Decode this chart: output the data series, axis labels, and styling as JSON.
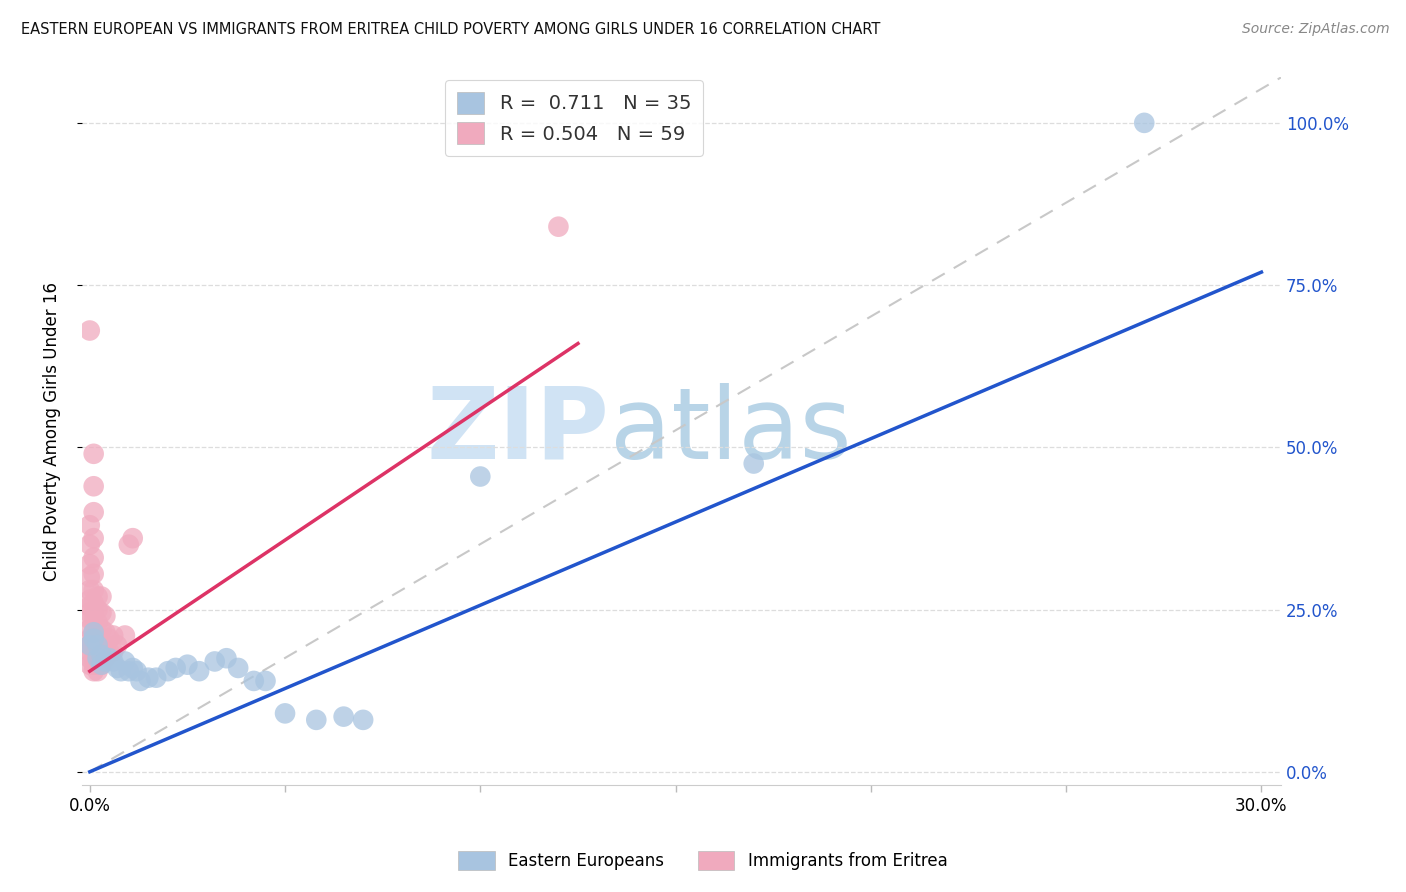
{
  "title": "EASTERN EUROPEAN VS IMMIGRANTS FROM ERITREA CHILD POVERTY AMONG GIRLS UNDER 16 CORRELATION CHART",
  "source": "Source: ZipAtlas.com",
  "ylabel": "Child Poverty Among Girls Under 16",
  "xlim": [
    -0.002,
    0.305
  ],
  "ylim": [
    -0.02,
    1.07
  ],
  "yticks": [
    0.0,
    0.25,
    0.5,
    0.75,
    1.0
  ],
  "xticks": [
    0.0,
    0.05,
    0.1,
    0.15,
    0.2,
    0.25,
    0.3
  ],
  "xtick_labels": [
    "0.0%",
    "",
    "",
    "",
    "",
    "",
    "30.0%"
  ],
  "ytick_labels_right": [
    "0.0%",
    "25.0%",
    "50.0%",
    "75.0%",
    "100.0%"
  ],
  "blue_R": "0.711",
  "blue_N": "35",
  "pink_R": "0.504",
  "pink_N": "59",
  "blue_scatter_color": "#A8C4E0",
  "pink_scatter_color": "#F0AABE",
  "blue_line_color": "#2255CC",
  "pink_line_color": "#DD3366",
  "grid_color": "#DDDDDD",
  "diag_color": "#C8C8C8",
  "watermark_zip_color": "#C0D8F0",
  "watermark_atlas_color": "#98C0E0",
  "legend_label_blue": "Eastern Europeans",
  "legend_label_pink": "Immigrants from Eritrea",
  "blue_line_x": [
    0.0,
    0.3
  ],
  "blue_line_y": [
    0.0,
    0.77
  ],
  "pink_line_x": [
    0.0,
    0.125
  ],
  "pink_line_y": [
    0.155,
    0.66
  ],
  "diag_line_x": [
    0.0,
    0.305
  ],
  "diag_line_y": [
    0.0,
    1.07
  ],
  "blue_points": [
    [
      0.0,
      0.195
    ],
    [
      0.001,
      0.215
    ],
    [
      0.001,
      0.205
    ],
    [
      0.002,
      0.195
    ],
    [
      0.002,
      0.175
    ],
    [
      0.003,
      0.18
    ],
    [
      0.003,
      0.165
    ],
    [
      0.004,
      0.17
    ],
    [
      0.005,
      0.175
    ],
    [
      0.006,
      0.17
    ],
    [
      0.007,
      0.16
    ],
    [
      0.008,
      0.155
    ],
    [
      0.009,
      0.17
    ],
    [
      0.01,
      0.155
    ],
    [
      0.011,
      0.16
    ],
    [
      0.012,
      0.155
    ],
    [
      0.013,
      0.14
    ],
    [
      0.015,
      0.145
    ],
    [
      0.017,
      0.145
    ],
    [
      0.02,
      0.155
    ],
    [
      0.022,
      0.16
    ],
    [
      0.025,
      0.165
    ],
    [
      0.028,
      0.155
    ],
    [
      0.032,
      0.17
    ],
    [
      0.035,
      0.175
    ],
    [
      0.038,
      0.16
    ],
    [
      0.042,
      0.14
    ],
    [
      0.045,
      0.14
    ],
    [
      0.05,
      0.09
    ],
    [
      0.058,
      0.08
    ],
    [
      0.065,
      0.085
    ],
    [
      0.07,
      0.08
    ],
    [
      0.1,
      0.455
    ],
    [
      0.17,
      0.475
    ],
    [
      0.27,
      1.0
    ]
  ],
  "pink_points": [
    [
      0.0,
      0.165
    ],
    [
      0.0,
      0.175
    ],
    [
      0.0,
      0.185
    ],
    [
      0.0,
      0.195
    ],
    [
      0.0,
      0.205
    ],
    [
      0.0,
      0.22
    ],
    [
      0.0,
      0.235
    ],
    [
      0.0,
      0.245
    ],
    [
      0.0,
      0.255
    ],
    [
      0.0,
      0.265
    ],
    [
      0.0,
      0.28
    ],
    [
      0.0,
      0.3
    ],
    [
      0.0,
      0.32
    ],
    [
      0.0,
      0.35
    ],
    [
      0.0,
      0.38
    ],
    [
      0.0,
      0.68
    ],
    [
      0.001,
      0.155
    ],
    [
      0.001,
      0.165
    ],
    [
      0.001,
      0.175
    ],
    [
      0.001,
      0.19
    ],
    [
      0.001,
      0.205
    ],
    [
      0.001,
      0.215
    ],
    [
      0.001,
      0.23
    ],
    [
      0.001,
      0.245
    ],
    [
      0.001,
      0.26
    ],
    [
      0.001,
      0.28
    ],
    [
      0.001,
      0.305
    ],
    [
      0.001,
      0.33
    ],
    [
      0.001,
      0.36
    ],
    [
      0.001,
      0.4
    ],
    [
      0.001,
      0.44
    ],
    [
      0.001,
      0.49
    ],
    [
      0.002,
      0.155
    ],
    [
      0.002,
      0.165
    ],
    [
      0.002,
      0.18
    ],
    [
      0.002,
      0.195
    ],
    [
      0.002,
      0.21
    ],
    [
      0.002,
      0.23
    ],
    [
      0.002,
      0.25
    ],
    [
      0.002,
      0.27
    ],
    [
      0.003,
      0.165
    ],
    [
      0.003,
      0.18
    ],
    [
      0.003,
      0.2
    ],
    [
      0.003,
      0.22
    ],
    [
      0.003,
      0.245
    ],
    [
      0.003,
      0.27
    ],
    [
      0.004,
      0.175
    ],
    [
      0.004,
      0.195
    ],
    [
      0.004,
      0.215
    ],
    [
      0.004,
      0.24
    ],
    [
      0.005,
      0.185
    ],
    [
      0.005,
      0.205
    ],
    [
      0.006,
      0.185
    ],
    [
      0.006,
      0.21
    ],
    [
      0.007,
      0.195
    ],
    [
      0.009,
      0.21
    ],
    [
      0.01,
      0.35
    ],
    [
      0.011,
      0.36
    ],
    [
      0.12,
      0.84
    ]
  ]
}
